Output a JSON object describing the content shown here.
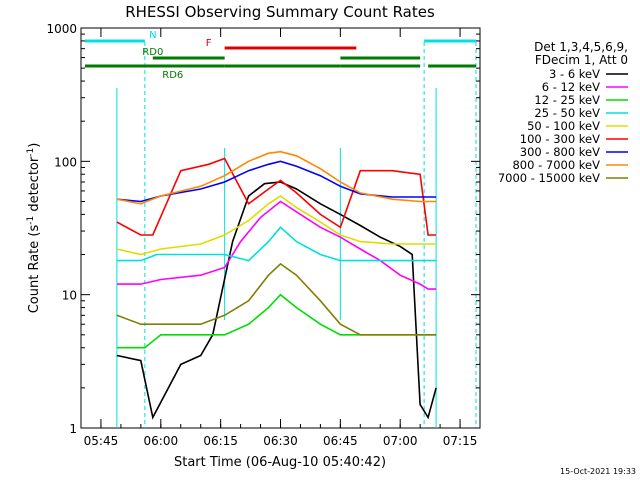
{
  "chart_data": {
    "type": "line",
    "title": "RHESSI Observing Summary Count Rates",
    "xlabel": "Start Time (06-Aug-10 05:40:42)",
    "ylabel_main": "Count Rate (s",
    "ylabel_sup1": "-1",
    "ylabel_mid": " detector",
    "ylabel_sup2": "-1",
    "ylabel_end": ")",
    "y_scale": "log",
    "ylim": [
      1,
      1000
    ],
    "xlim_minutes": [
      "05:40",
      "07:20"
    ],
    "x_ticks": [
      "05:45",
      "06:00",
      "06:15",
      "06:30",
      "06:45",
      "07:00",
      "07:15"
    ],
    "y_ticks": [
      "1",
      "10",
      "100",
      "1000"
    ],
    "legend_title_1": "Det 1,3,4,5,6,9,",
    "legend_title_2": "FDecim 1, Att 0",
    "legend_position": "right",
    "timestamp": "15-Oct-2021 19:33",
    "flags": [
      {
        "label": "N",
        "color": "#00e0e0",
        "segments": [
          [
            "05:41",
            "05:56"
          ],
          [
            "07:06",
            "07:19"
          ]
        ]
      },
      {
        "label": "F",
        "color": "#e00000",
        "segments": [
          [
            "06:16",
            "06:49"
          ]
        ]
      },
      {
        "label": "RD0",
        "color": "#007a00",
        "segments": [
          [
            "05:58",
            "06:16"
          ],
          [
            "06:45",
            "07:05"
          ]
        ]
      },
      {
        "label": "RD6",
        "color": "#007a00",
        "segments": [
          [
            "05:41",
            "06:16"
          ],
          [
            "06:16",
            "06:45"
          ],
          [
            "06:45",
            "07:05"
          ],
          [
            "07:07",
            "07:19"
          ]
        ]
      }
    ],
    "data_window": [
      "05:49",
      "07:09"
    ],
    "series": [
      {
        "name": "3 - 6 keV",
        "color": "#000000",
        "x": [
          "05:49",
          "05:55",
          "05:58",
          "06:05",
          "06:10",
          "06:13",
          "06:18",
          "06:22",
          "06:26",
          "06:30",
          "06:34",
          "06:40",
          "06:45",
          "06:50",
          "06:55",
          "07:00",
          "07:03",
          "07:05",
          "07:07",
          "07:09"
        ],
        "values": [
          3.5,
          3.2,
          1.2,
          3,
          3.5,
          5,
          25,
          55,
          68,
          70,
          62,
          48,
          40,
          33,
          27,
          23,
          20,
          1.5,
          1.2,
          2
        ]
      },
      {
        "name": "6 - 12 keV",
        "color": "#ff00ff",
        "x": [
          "05:49",
          "05:55",
          "06:00",
          "06:10",
          "06:16",
          "06:20",
          "06:25",
          "06:30",
          "06:35",
          "06:40",
          "06:45",
          "06:50",
          "06:55",
          "07:00",
          "07:05",
          "07:07",
          "07:09"
        ],
        "values": [
          12,
          12,
          13,
          14,
          16,
          25,
          38,
          50,
          40,
          32,
          27,
          22,
          18,
          14,
          12,
          11,
          11
        ]
      },
      {
        "name": "12 - 25 keV",
        "color": "#00dd00",
        "x": [
          "05:49",
          "05:56",
          "06:00",
          "06:10",
          "06:16",
          "06:22",
          "06:27",
          "06:30",
          "06:34",
          "06:40",
          "06:45",
          "06:50",
          "06:58",
          "07:05",
          "07:09"
        ],
        "values": [
          4,
          4,
          5,
          5,
          5,
          6,
          8,
          10,
          8,
          6,
          5,
          5,
          5,
          5,
          5
        ]
      },
      {
        "name": "25 - 50 keV",
        "color": "#00e0e0",
        "x": [
          "05:49",
          "05:55",
          "05:59",
          "06:10",
          "06:16",
          "06:22",
          "06:27",
          "06:30",
          "06:34",
          "06:40",
          "06:45",
          "06:50",
          "06:58",
          "07:05",
          "07:09"
        ],
        "values": [
          18,
          18,
          20,
          20,
          20,
          18,
          25,
          32,
          25,
          20,
          18,
          18,
          18,
          18,
          18
        ]
      },
      {
        "name": "50 - 100 keV",
        "color": "#dddd00",
        "x": [
          "05:49",
          "05:55",
          "06:00",
          "06:10",
          "06:16",
          "06:22",
          "06:27",
          "06:30",
          "06:34",
          "06:40",
          "06:45",
          "06:50",
          "06:58",
          "07:05",
          "07:09"
        ],
        "values": [
          22,
          20,
          22,
          24,
          28,
          36,
          48,
          55,
          45,
          35,
          28,
          25,
          24,
          24,
          24
        ]
      },
      {
        "name": "100 - 300 keV",
        "color": "#ff0000",
        "x": [
          "05:49",
          "05:55",
          "05:58",
          "06:05",
          "06:12",
          "06:16",
          "06:22",
          "06:27",
          "06:30",
          "06:34",
          "06:40",
          "06:45",
          "06:50",
          "06:58",
          "07:05",
          "07:07",
          "07:09"
        ],
        "values": [
          35,
          28,
          28,
          85,
          95,
          105,
          48,
          62,
          72,
          58,
          40,
          32,
          85,
          85,
          80,
          28,
          28
        ]
      },
      {
        "name": "300 - 800 keV",
        "color": "#0000ff",
        "x": [
          "05:49",
          "05:55",
          "06:00",
          "06:10",
          "06:16",
          "06:22",
          "06:27",
          "06:30",
          "06:34",
          "06:40",
          "06:45",
          "06:50",
          "06:58",
          "07:05",
          "07:09"
        ],
        "values": [
          52,
          50,
          55,
          62,
          70,
          85,
          95,
          100,
          92,
          78,
          65,
          57,
          54,
          54,
          54
        ]
      },
      {
        "name": "800 - 7000 keV",
        "color": "#ff8800",
        "x": [
          "05:49",
          "05:55",
          "06:00",
          "06:10",
          "06:16",
          "06:22",
          "06:27",
          "06:30",
          "06:34",
          "06:40",
          "06:45",
          "06:50",
          "06:58",
          "07:05",
          "07:09"
        ],
        "values": [
          52,
          48,
          55,
          65,
          78,
          100,
          115,
          118,
          110,
          88,
          70,
          58,
          52,
          50,
          50
        ]
      },
      {
        "name": "7000 - 15000 keV",
        "color": "#808000",
        "x": [
          "05:49",
          "05:55",
          "06:00",
          "06:10",
          "06:16",
          "06:22",
          "06:27",
          "06:30",
          "06:34",
          "06:40",
          "06:45",
          "06:50",
          "06:58",
          "07:05",
          "07:09"
        ],
        "values": [
          7,
          6,
          6,
          6,
          7,
          9,
          14,
          17,
          14,
          9,
          6,
          5,
          5,
          5,
          5
        ]
      }
    ]
  }
}
